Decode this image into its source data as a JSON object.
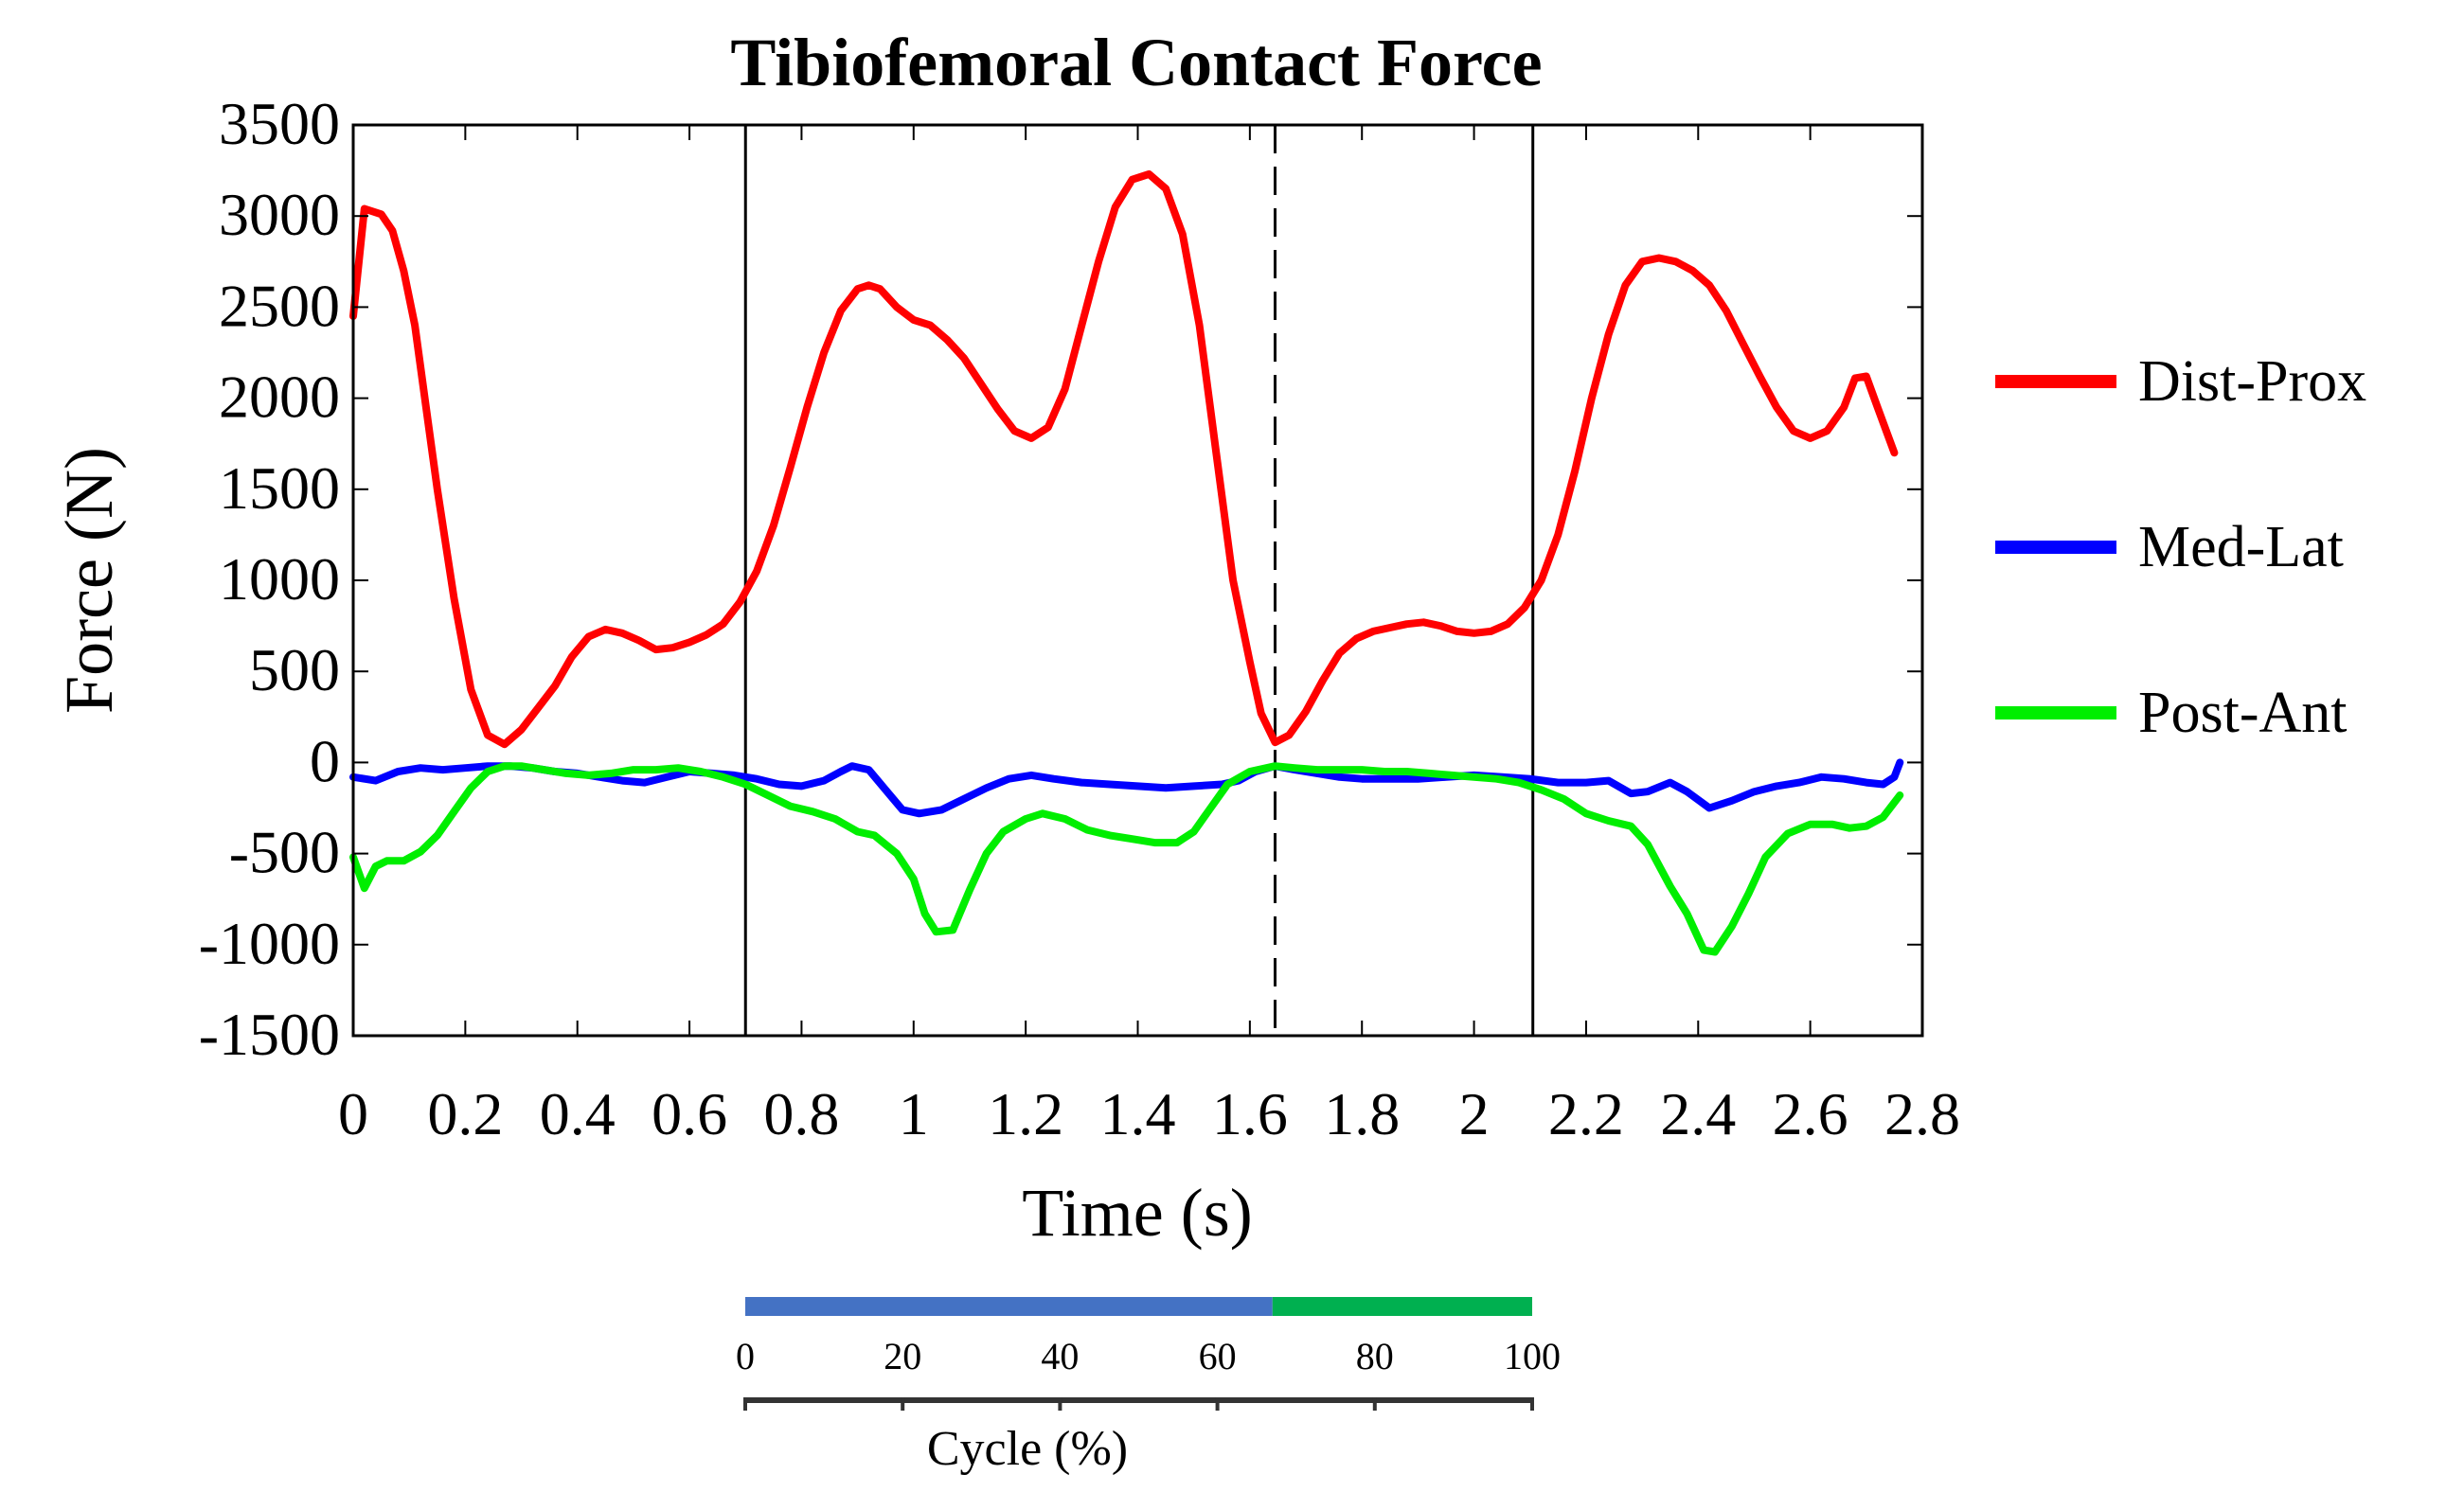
{
  "chart_data": {
    "type": "line",
    "title": "Tibiofemoral Contact Force",
    "xlabel": "Time (s)",
    "ylabel": "Force (N)",
    "xlim": [
      0,
      2.8
    ],
    "ylim": [
      -1500,
      3500
    ],
    "xticks": [
      0,
      0.2,
      0.4,
      0.6,
      0.8,
      1,
      1.2,
      1.4,
      1.6,
      1.8,
      2,
      2.2,
      2.4,
      2.6,
      2.8
    ],
    "xtick_labels": [
      "0",
      "0.2",
      "0.4",
      "0.6",
      "0.8",
      "1",
      "1.2",
      "1.4",
      "1.6",
      "1.8",
      "2",
      "2.2",
      "2.4",
      "2.6",
      "2.8"
    ],
    "yticks": [
      -1500,
      -1000,
      -500,
      0,
      500,
      1000,
      1500,
      2000,
      2500,
      3000,
      3500
    ],
    "ytick_labels": [
      "-1500",
      "-1000",
      "-500",
      "0",
      "500",
      "1000",
      "1500",
      "2000",
      "2500",
      "3000",
      "3500"
    ],
    "grid": false,
    "legend_position": "right",
    "vertical_lines": [
      {
        "x": 0.7,
        "style": "solid",
        "color": "#000000"
      },
      {
        "x": 1.645,
        "style": "dashed",
        "color": "#000000"
      },
      {
        "x": 2.105,
        "style": "solid",
        "color": "#000000"
      }
    ],
    "series": [
      {
        "name": "Dist-Prox",
        "color": "#ff0000",
        "points": [
          [
            0,
            2450
          ],
          [
            0.02,
            3040
          ],
          [
            0.05,
            3010
          ],
          [
            0.07,
            2920
          ],
          [
            0.09,
            2700
          ],
          [
            0.11,
            2400
          ],
          [
            0.13,
            1950
          ],
          [
            0.15,
            1500
          ],
          [
            0.18,
            900
          ],
          [
            0.21,
            400
          ],
          [
            0.24,
            150
          ],
          [
            0.27,
            100
          ],
          [
            0.3,
            180
          ],
          [
            0.33,
            300
          ],
          [
            0.36,
            420
          ],
          [
            0.39,
            580
          ],
          [
            0.42,
            690
          ],
          [
            0.45,
            730
          ],
          [
            0.48,
            710
          ],
          [
            0.51,
            670
          ],
          [
            0.54,
            620
          ],
          [
            0.57,
            630
          ],
          [
            0.6,
            660
          ],
          [
            0.63,
            700
          ],
          [
            0.66,
            760
          ],
          [
            0.69,
            880
          ],
          [
            0.72,
            1050
          ],
          [
            0.75,
            1300
          ],
          [
            0.78,
            1620
          ],
          [
            0.81,
            1950
          ],
          [
            0.84,
            2250
          ],
          [
            0.87,
            2480
          ],
          [
            0.9,
            2600
          ],
          [
            0.92,
            2620
          ],
          [
            0.94,
            2600
          ],
          [
            0.97,
            2500
          ],
          [
            1,
            2430
          ],
          [
            1.03,
            2400
          ],
          [
            1.06,
            2320
          ],
          [
            1.09,
            2220
          ],
          [
            1.12,
            2080
          ],
          [
            1.15,
            1940
          ],
          [
            1.18,
            1820
          ],
          [
            1.21,
            1780
          ],
          [
            1.24,
            1840
          ],
          [
            1.27,
            2050
          ],
          [
            1.3,
            2400
          ],
          [
            1.33,
            2750
          ],
          [
            1.36,
            3050
          ],
          [
            1.39,
            3200
          ],
          [
            1.42,
            3230
          ],
          [
            1.45,
            3150
          ],
          [
            1.48,
            2900
          ],
          [
            1.51,
            2400
          ],
          [
            1.54,
            1700
          ],
          [
            1.57,
            1000
          ],
          [
            1.6,
            550
          ],
          [
            1.62,
            270
          ],
          [
            1.645,
            110
          ],
          [
            1.67,
            150
          ],
          [
            1.7,
            280
          ],
          [
            1.73,
            450
          ],
          [
            1.76,
            600
          ],
          [
            1.79,
            680
          ],
          [
            1.82,
            720
          ],
          [
            1.85,
            740
          ],
          [
            1.88,
            760
          ],
          [
            1.91,
            770
          ],
          [
            1.94,
            750
          ],
          [
            1.97,
            720
          ],
          [
            2,
            710
          ],
          [
            2.03,
            720
          ],
          [
            2.06,
            760
          ],
          [
            2.09,
            850
          ],
          [
            2.12,
            1000
          ],
          [
            2.15,
            1250
          ],
          [
            2.18,
            1600
          ],
          [
            2.21,
            2000
          ],
          [
            2.24,
            2350
          ],
          [
            2.27,
            2620
          ],
          [
            2.3,
            2750
          ],
          [
            2.33,
            2770
          ],
          [
            2.36,
            2750
          ],
          [
            2.39,
            2700
          ],
          [
            2.42,
            2620
          ],
          [
            2.45,
            2480
          ],
          [
            2.48,
            2300
          ],
          [
            2.51,
            2120
          ],
          [
            2.54,
            1950
          ],
          [
            2.57,
            1820
          ],
          [
            2.6,
            1780
          ],
          [
            2.63,
            1820
          ],
          [
            2.66,
            1950
          ],
          [
            2.68,
            2110
          ],
          [
            2.7,
            2120
          ],
          [
            2.72,
            1950
          ],
          [
            2.75,
            1700
          ]
        ]
      },
      {
        "name": "Med-Lat",
        "color": "#0000ff",
        "points": [
          [
            0,
            -80
          ],
          [
            0.04,
            -100
          ],
          [
            0.08,
            -50
          ],
          [
            0.12,
            -30
          ],
          [
            0.16,
            -40
          ],
          [
            0.2,
            -30
          ],
          [
            0.24,
            -20
          ],
          [
            0.28,
            -20
          ],
          [
            0.32,
            -30
          ],
          [
            0.36,
            -50
          ],
          [
            0.4,
            -60
          ],
          [
            0.44,
            -80
          ],
          [
            0.48,
            -100
          ],
          [
            0.52,
            -110
          ],
          [
            0.56,
            -80
          ],
          [
            0.6,
            -50
          ],
          [
            0.64,
            -60
          ],
          [
            0.68,
            -70
          ],
          [
            0.72,
            -90
          ],
          [
            0.76,
            -120
          ],
          [
            0.8,
            -130
          ],
          [
            0.84,
            -100
          ],
          [
            0.87,
            -50
          ],
          [
            0.89,
            -20
          ],
          [
            0.92,
            -40
          ],
          [
            0.95,
            -150
          ],
          [
            0.98,
            -260
          ],
          [
            1.01,
            -280
          ],
          [
            1.05,
            -260
          ],
          [
            1.09,
            -200
          ],
          [
            1.13,
            -140
          ],
          [
            1.17,
            -90
          ],
          [
            1.21,
            -70
          ],
          [
            1.25,
            -90
          ],
          [
            1.3,
            -110
          ],
          [
            1.35,
            -120
          ],
          [
            1.4,
            -130
          ],
          [
            1.45,
            -140
          ],
          [
            1.5,
            -130
          ],
          [
            1.55,
            -120
          ],
          [
            1.58,
            -100
          ],
          [
            1.61,
            -50
          ],
          [
            1.645,
            -20
          ],
          [
            1.68,
            -40
          ],
          [
            1.72,
            -60
          ],
          [
            1.76,
            -80
          ],
          [
            1.8,
            -90
          ],
          [
            1.85,
            -90
          ],
          [
            1.9,
            -90
          ],
          [
            1.95,
            -80
          ],
          [
            2,
            -70
          ],
          [
            2.05,
            -80
          ],
          [
            2.1,
            -90
          ],
          [
            2.15,
            -110
          ],
          [
            2.2,
            -110
          ],
          [
            2.24,
            -100
          ],
          [
            2.28,
            -170
          ],
          [
            2.31,
            -160
          ],
          [
            2.35,
            -110
          ],
          [
            2.38,
            -160
          ],
          [
            2.42,
            -250
          ],
          [
            2.46,
            -210
          ],
          [
            2.5,
            -160
          ],
          [
            2.54,
            -130
          ],
          [
            2.58,
            -110
          ],
          [
            2.62,
            -80
          ],
          [
            2.66,
            -90
          ],
          [
            2.7,
            -110
          ],
          [
            2.73,
            -120
          ],
          [
            2.75,
            -80
          ],
          [
            2.76,
            0
          ]
        ]
      },
      {
        "name": "Post-Ant",
        "color": "#00ee00",
        "points": [
          [
            0,
            -520
          ],
          [
            0.02,
            -690
          ],
          [
            0.04,
            -570
          ],
          [
            0.06,
            -540
          ],
          [
            0.09,
            -540
          ],
          [
            0.12,
            -490
          ],
          [
            0.15,
            -400
          ],
          [
            0.18,
            -270
          ],
          [
            0.21,
            -140
          ],
          [
            0.24,
            -50
          ],
          [
            0.27,
            -20
          ],
          [
            0.3,
            -20
          ],
          [
            0.34,
            -40
          ],
          [
            0.38,
            -60
          ],
          [
            0.42,
            -70
          ],
          [
            0.46,
            -60
          ],
          [
            0.5,
            -40
          ],
          [
            0.54,
            -40
          ],
          [
            0.58,
            -30
          ],
          [
            0.62,
            -50
          ],
          [
            0.66,
            -80
          ],
          [
            0.7,
            -120
          ],
          [
            0.74,
            -180
          ],
          [
            0.78,
            -240
          ],
          [
            0.82,
            -270
          ],
          [
            0.86,
            -310
          ],
          [
            0.9,
            -380
          ],
          [
            0.93,
            -400
          ],
          [
            0.97,
            -500
          ],
          [
            1,
            -640
          ],
          [
            1.02,
            -830
          ],
          [
            1.04,
            -930
          ],
          [
            1.07,
            -920
          ],
          [
            1.1,
            -700
          ],
          [
            1.13,
            -500
          ],
          [
            1.16,
            -380
          ],
          [
            1.2,
            -310
          ],
          [
            1.23,
            -280
          ],
          [
            1.27,
            -310
          ],
          [
            1.31,
            -370
          ],
          [
            1.35,
            -400
          ],
          [
            1.39,
            -420
          ],
          [
            1.43,
            -440
          ],
          [
            1.47,
            -440
          ],
          [
            1.5,
            -380
          ],
          [
            1.53,
            -250
          ],
          [
            1.56,
            -120
          ],
          [
            1.6,
            -50
          ],
          [
            1.645,
            -20
          ],
          [
            1.68,
            -30
          ],
          [
            1.72,
            -40
          ],
          [
            1.76,
            -40
          ],
          [
            1.8,
            -40
          ],
          [
            1.84,
            -50
          ],
          [
            1.88,
            -50
          ],
          [
            1.92,
            -60
          ],
          [
            1.96,
            -70
          ],
          [
            2,
            -80
          ],
          [
            2.04,
            -90
          ],
          [
            2.08,
            -110
          ],
          [
            2.12,
            -150
          ],
          [
            2.16,
            -200
          ],
          [
            2.2,
            -280
          ],
          [
            2.24,
            -320
          ],
          [
            2.28,
            -350
          ],
          [
            2.31,
            -450
          ],
          [
            2.35,
            -680
          ],
          [
            2.38,
            -830
          ],
          [
            2.41,
            -1030
          ],
          [
            2.43,
            -1040
          ],
          [
            2.46,
            -900
          ],
          [
            2.49,
            -720
          ],
          [
            2.52,
            -520
          ],
          [
            2.56,
            -390
          ],
          [
            2.6,
            -340
          ],
          [
            2.64,
            -340
          ],
          [
            2.67,
            -360
          ],
          [
            2.7,
            -350
          ],
          [
            2.73,
            -300
          ],
          [
            2.76,
            -180
          ]
        ]
      }
    ],
    "cycle_axis": {
      "label": "Cycle (%)",
      "ticks": [
        0,
        20,
        40,
        60,
        80,
        100
      ],
      "tick_labels": [
        "0",
        "20",
        "40",
        "60",
        "80",
        "100"
      ],
      "phases": [
        {
          "from": 0,
          "to": 67,
          "color": "#4472c4"
        },
        {
          "from": 67,
          "to": 100,
          "color": "#00b050"
        }
      ]
    }
  }
}
